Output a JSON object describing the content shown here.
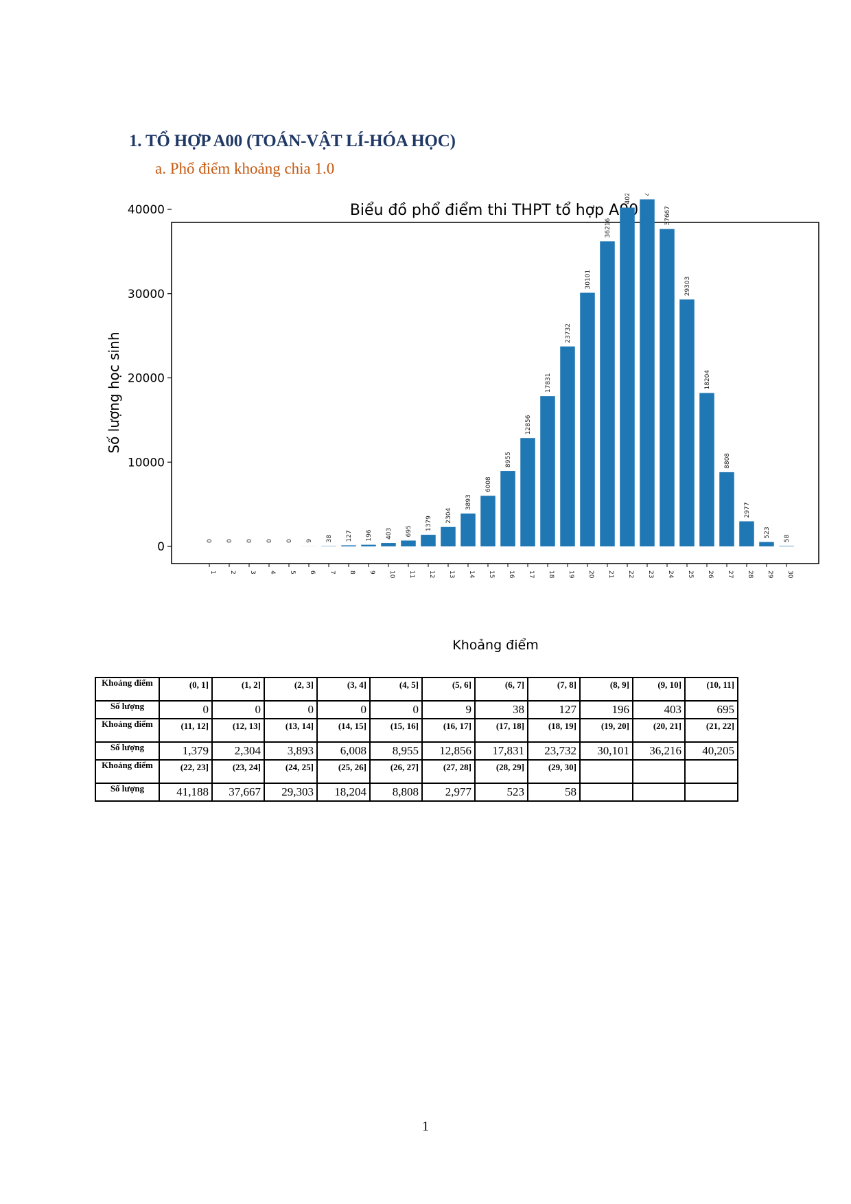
{
  "document": {
    "heading": "1.  TỔ HỢP A00 (TOÁN-VẬT LÍ-HÓA HỌC)",
    "subheading": "a.  Phổ điểm khoảng chia 1.0",
    "page_number": "1"
  },
  "colors": {
    "heading": "#1f3864",
    "subheading": "#c55a11",
    "bar": "#1f77b4"
  },
  "chart_data": {
    "type": "bar",
    "title": "Biểu đồ phổ điểm thi THPT tổ hợp A00",
    "xlabel": "Khoảng điểm",
    "ylabel": "Số lượng học sinh",
    "categories": [
      "1",
      "2",
      "3",
      "4",
      "5",
      "6",
      "7",
      "8",
      "9",
      "10",
      "11",
      "12",
      "13",
      "14",
      "15",
      "16",
      "17",
      "18",
      "19",
      "20",
      "21",
      "22",
      "23",
      "24",
      "25",
      "26",
      "27",
      "28",
      "29",
      "30"
    ],
    "values": [
      0,
      0,
      0,
      0,
      0,
      9,
      38,
      127,
      196,
      403,
      695,
      1379,
      2304,
      3893,
      6008,
      8955,
      12856,
      17831,
      23732,
      30101,
      36216,
      40205,
      41188,
      37667,
      29303,
      18204,
      8808,
      2977,
      523,
      58
    ],
    "yticks": [
      "0",
      "10000",
      "20000",
      "30000",
      "40000"
    ],
    "ylim": [
      0,
      45000
    ],
    "grid": false,
    "legend": "none"
  },
  "table": {
    "range_label": "Khoảng điểm",
    "count_label": "Số lượng",
    "groups": [
      {
        "ranges": [
          "(0, 1]",
          "(1, 2]",
          "(2, 3]",
          "(3, 4]",
          "(4, 5]",
          "(5, 6]",
          "(6, 7]",
          "(7, 8]",
          "(8, 9]",
          "(9, 10]",
          "(10, 11]"
        ],
        "counts": [
          "0",
          "0",
          "0",
          "0",
          "0",
          "9",
          "38",
          "127",
          "196",
          "403",
          "695"
        ]
      },
      {
        "ranges": [
          "(11, 12]",
          "(12, 13]",
          "(13, 14]",
          "(14, 15]",
          "(15, 16]",
          "(16, 17]",
          "(17, 18]",
          "(18, 19]",
          "(19, 20]",
          "(20, 21]",
          "(21, 22]"
        ],
        "counts": [
          "1,379",
          "2,304",
          "3,893",
          "6,008",
          "8,955",
          "12,856",
          "17,831",
          "23,732",
          "30,101",
          "36,216",
          "40,205"
        ]
      },
      {
        "ranges": [
          "(22, 23]",
          "(23, 24]",
          "(24, 25]",
          "(25, 26]",
          "(26, 27]",
          "(27, 28]",
          "(28, 29]",
          "(29, 30]",
          "",
          "",
          ""
        ],
        "counts": [
          "41,188",
          "37,667",
          "29,303",
          "18,204",
          "8,808",
          "2,977",
          "523",
          "58",
          "",
          "",
          ""
        ]
      }
    ]
  }
}
